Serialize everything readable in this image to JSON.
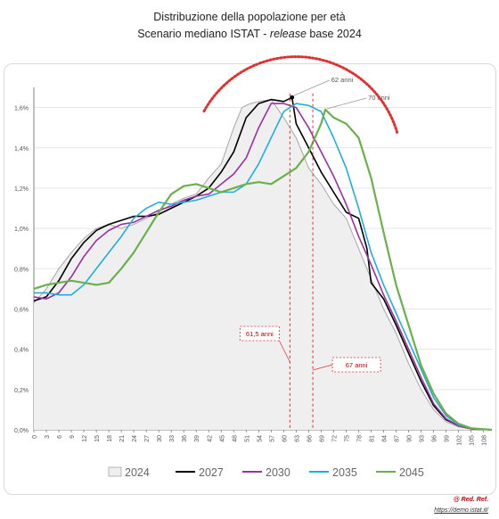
{
  "chart_data": {
    "type": "area",
    "title": "Distribuzione della popolazione per età",
    "subtitle_parts": [
      "Scenario mediano ISTAT - ",
      "release",
      "  base 2024"
    ],
    "x_ticks": [
      0,
      3,
      6,
      9,
      12,
      15,
      18,
      21,
      24,
      27,
      30,
      33,
      36,
      39,
      42,
      45,
      48,
      51,
      54,
      57,
      60,
      63,
      66,
      69,
      72,
      75,
      78,
      81,
      84,
      87,
      90,
      93,
      96,
      99,
      102,
      105,
      108
    ],
    "y_ticks": [
      "0,0%",
      "0,2%",
      "0,4%",
      "0,6%",
      "0,8%",
      "1,0%",
      "1,2%",
      "1,4%",
      "1,6%"
    ],
    "ylim": [
      0,
      1.7
    ],
    "xlim": [
      0,
      110
    ],
    "series": [
      {
        "name": "2024",
        "color": "#a6a6a6",
        "fill": "#efefef",
        "points": [
          [
            0,
            0.63
          ],
          [
            3,
            0.7
          ],
          [
            6,
            0.8
          ],
          [
            9,
            0.88
          ],
          [
            12,
            0.95
          ],
          [
            15,
            1.0
          ],
          [
            18,
            1.02
          ],
          [
            21,
            1.0
          ],
          [
            24,
            1.02
          ],
          [
            27,
            1.05
          ],
          [
            30,
            1.08
          ],
          [
            33,
            1.12
          ],
          [
            36,
            1.15
          ],
          [
            39,
            1.17
          ],
          [
            42,
            1.25
          ],
          [
            45,
            1.32
          ],
          [
            48,
            1.5
          ],
          [
            50,
            1.6
          ],
          [
            52,
            1.62
          ],
          [
            54,
            1.63
          ],
          [
            57,
            1.64
          ],
          [
            60,
            1.55
          ],
          [
            63,
            1.45
          ],
          [
            66,
            1.3
          ],
          [
            69,
            1.22
          ],
          [
            72,
            1.12
          ],
          [
            75,
            1.05
          ],
          [
            78,
            0.9
          ],
          [
            80,
            0.8
          ],
          [
            82,
            0.7
          ],
          [
            84,
            0.6
          ],
          [
            87,
            0.48
          ],
          [
            90,
            0.33
          ],
          [
            93,
            0.2
          ],
          [
            96,
            0.1
          ],
          [
            99,
            0.04
          ],
          [
            102,
            0.015
          ],
          [
            105,
            0.005
          ],
          [
            108,
            0.001
          ],
          [
            110,
            0.0
          ]
        ]
      },
      {
        "name": "2027",
        "color": "#000000",
        "points": [
          [
            0,
            0.64
          ],
          [
            3,
            0.66
          ],
          [
            6,
            0.74
          ],
          [
            9,
            0.85
          ],
          [
            12,
            0.93
          ],
          [
            15,
            0.99
          ],
          [
            18,
            1.02
          ],
          [
            21,
            1.04
          ],
          [
            24,
            1.06
          ],
          [
            27,
            1.06
          ],
          [
            30,
            1.07
          ],
          [
            33,
            1.1
          ],
          [
            36,
            1.13
          ],
          [
            39,
            1.16
          ],
          [
            42,
            1.2
          ],
          [
            45,
            1.28
          ],
          [
            48,
            1.38
          ],
          [
            51,
            1.55
          ],
          [
            54,
            1.62
          ],
          [
            57,
            1.64
          ],
          [
            60,
            1.63
          ],
          [
            62,
            1.65
          ],
          [
            63,
            1.52
          ],
          [
            66,
            1.4
          ],
          [
            69,
            1.28
          ],
          [
            72,
            1.18
          ],
          [
            75,
            1.08
          ],
          [
            78,
            1.05
          ],
          [
            80,
            0.9
          ],
          [
            81,
            0.73
          ],
          [
            84,
            0.65
          ],
          [
            87,
            0.52
          ],
          [
            90,
            0.38
          ],
          [
            93,
            0.24
          ],
          [
            96,
            0.12
          ],
          [
            99,
            0.05
          ],
          [
            102,
            0.02
          ],
          [
            105,
            0.005
          ],
          [
            110,
            0.0
          ]
        ]
      },
      {
        "name": "2030",
        "color": "#9b30a0",
        "points": [
          [
            0,
            0.66
          ],
          [
            3,
            0.65
          ],
          [
            6,
            0.68
          ],
          [
            9,
            0.76
          ],
          [
            12,
            0.86
          ],
          [
            15,
            0.94
          ],
          [
            18,
            0.99
          ],
          [
            21,
            1.02
          ],
          [
            24,
            1.03
          ],
          [
            27,
            1.06
          ],
          [
            30,
            1.09
          ],
          [
            33,
            1.11
          ],
          [
            36,
            1.14
          ],
          [
            39,
            1.16
          ],
          [
            42,
            1.17
          ],
          [
            45,
            1.22
          ],
          [
            48,
            1.27
          ],
          [
            51,
            1.35
          ],
          [
            54,
            1.5
          ],
          [
            57,
            1.62
          ],
          [
            60,
            1.62
          ],
          [
            63,
            1.6
          ],
          [
            66,
            1.5
          ],
          [
            69,
            1.38
          ],
          [
            72,
            1.26
          ],
          [
            75,
            1.12
          ],
          [
            78,
            0.96
          ],
          [
            81,
            0.82
          ],
          [
            84,
            0.67
          ],
          [
            87,
            0.54
          ],
          [
            90,
            0.4
          ],
          [
            93,
            0.26
          ],
          [
            96,
            0.13
          ],
          [
            99,
            0.055
          ],
          [
            102,
            0.02
          ],
          [
            105,
            0.005
          ],
          [
            110,
            0.0
          ]
        ]
      },
      {
        "name": "2035",
        "color": "#20aee0",
        "points": [
          [
            0,
            0.68
          ],
          [
            3,
            0.68
          ],
          [
            6,
            0.67
          ],
          [
            9,
            0.67
          ],
          [
            12,
            0.72
          ],
          [
            15,
            0.8
          ],
          [
            18,
            0.88
          ],
          [
            21,
            0.96
          ],
          [
            24,
            1.05
          ],
          [
            27,
            1.1
          ],
          [
            30,
            1.13
          ],
          [
            33,
            1.12
          ],
          [
            36,
            1.13
          ],
          [
            39,
            1.14
          ],
          [
            42,
            1.16
          ],
          [
            45,
            1.18
          ],
          [
            48,
            1.18
          ],
          [
            51,
            1.22
          ],
          [
            54,
            1.32
          ],
          [
            57,
            1.45
          ],
          [
            60,
            1.58
          ],
          [
            63,
            1.62
          ],
          [
            66,
            1.61
          ],
          [
            69,
            1.58
          ],
          [
            72,
            1.45
          ],
          [
            75,
            1.3
          ],
          [
            78,
            1.1
          ],
          [
            81,
            0.88
          ],
          [
            84,
            0.72
          ],
          [
            87,
            0.58
          ],
          [
            90,
            0.44
          ],
          [
            93,
            0.3
          ],
          [
            96,
            0.16
          ],
          [
            99,
            0.07
          ],
          [
            102,
            0.025
          ],
          [
            105,
            0.007
          ],
          [
            110,
            0.0
          ]
        ]
      },
      {
        "name": "2045",
        "color": "#6ab04c",
        "points": [
          [
            0,
            0.7
          ],
          [
            3,
            0.72
          ],
          [
            6,
            0.73
          ],
          [
            9,
            0.74
          ],
          [
            12,
            0.73
          ],
          [
            15,
            0.72
          ],
          [
            18,
            0.73
          ],
          [
            21,
            0.8
          ],
          [
            24,
            0.88
          ],
          [
            27,
            0.98
          ],
          [
            30,
            1.08
          ],
          [
            33,
            1.17
          ],
          [
            36,
            1.21
          ],
          [
            39,
            1.22
          ],
          [
            42,
            1.2
          ],
          [
            45,
            1.18
          ],
          [
            48,
            1.2
          ],
          [
            51,
            1.22
          ],
          [
            54,
            1.23
          ],
          [
            57,
            1.22
          ],
          [
            60,
            1.26
          ],
          [
            63,
            1.3
          ],
          [
            66,
            1.38
          ],
          [
            69,
            1.52
          ],
          [
            70,
            1.59
          ],
          [
            72,
            1.55
          ],
          [
            75,
            1.52
          ],
          [
            78,
            1.45
          ],
          [
            81,
            1.25
          ],
          [
            84,
            0.98
          ],
          [
            87,
            0.72
          ],
          [
            90,
            0.52
          ],
          [
            93,
            0.32
          ],
          [
            96,
            0.18
          ],
          [
            99,
            0.08
          ],
          [
            102,
            0.03
          ],
          [
            105,
            0.008
          ],
          [
            110,
            0.0
          ]
        ]
      }
    ],
    "annotations": {
      "peak_a": {
        "label": "62 anni",
        "x": 62,
        "y": 1.65
      },
      "peak_b": {
        "label": "70 anni",
        "x": 70,
        "y": 1.59
      },
      "median_a": {
        "label": "61,5 anni",
        "x": 61.5
      },
      "median_b": {
        "label": "67 anni",
        "x": 67
      }
    },
    "legend_position": "bottom"
  },
  "footer": {
    "credit": "@ Red. Ref.",
    "link": "https://demo.istat.it/"
  }
}
